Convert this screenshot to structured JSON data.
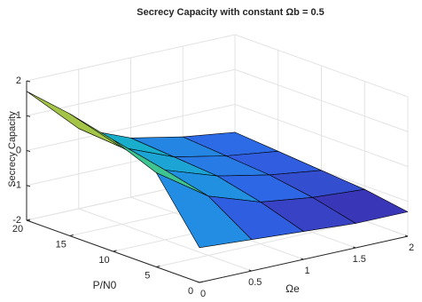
{
  "chart_data": {
    "type": "surface",
    "title": "Secrecy Capacity with constant  Ωb = 0.5",
    "xlabel": "Ωe",
    "ylabel": "P/N0",
    "zlabel": "Secrecy Capacity",
    "x": [
      0,
      0.5,
      1,
      1.5,
      2
    ],
    "y": [
      0,
      5,
      10,
      15,
      20
    ],
    "z": [
      [
        -1.0,
        -1.1,
        -1.2,
        -1.3,
        -1.3
      ],
      [
        0.7,
        -0.3,
        -0.8,
        -1.0,
        -1.1
      ],
      [
        1.2,
        0.0,
        -0.5,
        -0.8,
        -1.0
      ],
      [
        1.5,
        0.2,
        -0.4,
        -0.7,
        -0.9
      ],
      [
        1.7,
        0.3,
        -0.3,
        -0.6,
        -0.8
      ]
    ],
    "xlim": [
      0,
      2
    ],
    "xticks": [
      0,
      0.5,
      1,
      1.5,
      2
    ],
    "ylim": [
      0,
      20
    ],
    "yticks": [
      0,
      5,
      10,
      15,
      20
    ],
    "zlim": [
      -2,
      2
    ],
    "zticks": [
      -2,
      -1,
      0,
      1,
      2
    ],
    "grid": true,
    "colormap": [
      "#3e26a8",
      "#2f64e6",
      "#1e9be0",
      "#14c0b5",
      "#7bc95c",
      "#d6bd2f",
      "#f9fb0e"
    ]
  }
}
